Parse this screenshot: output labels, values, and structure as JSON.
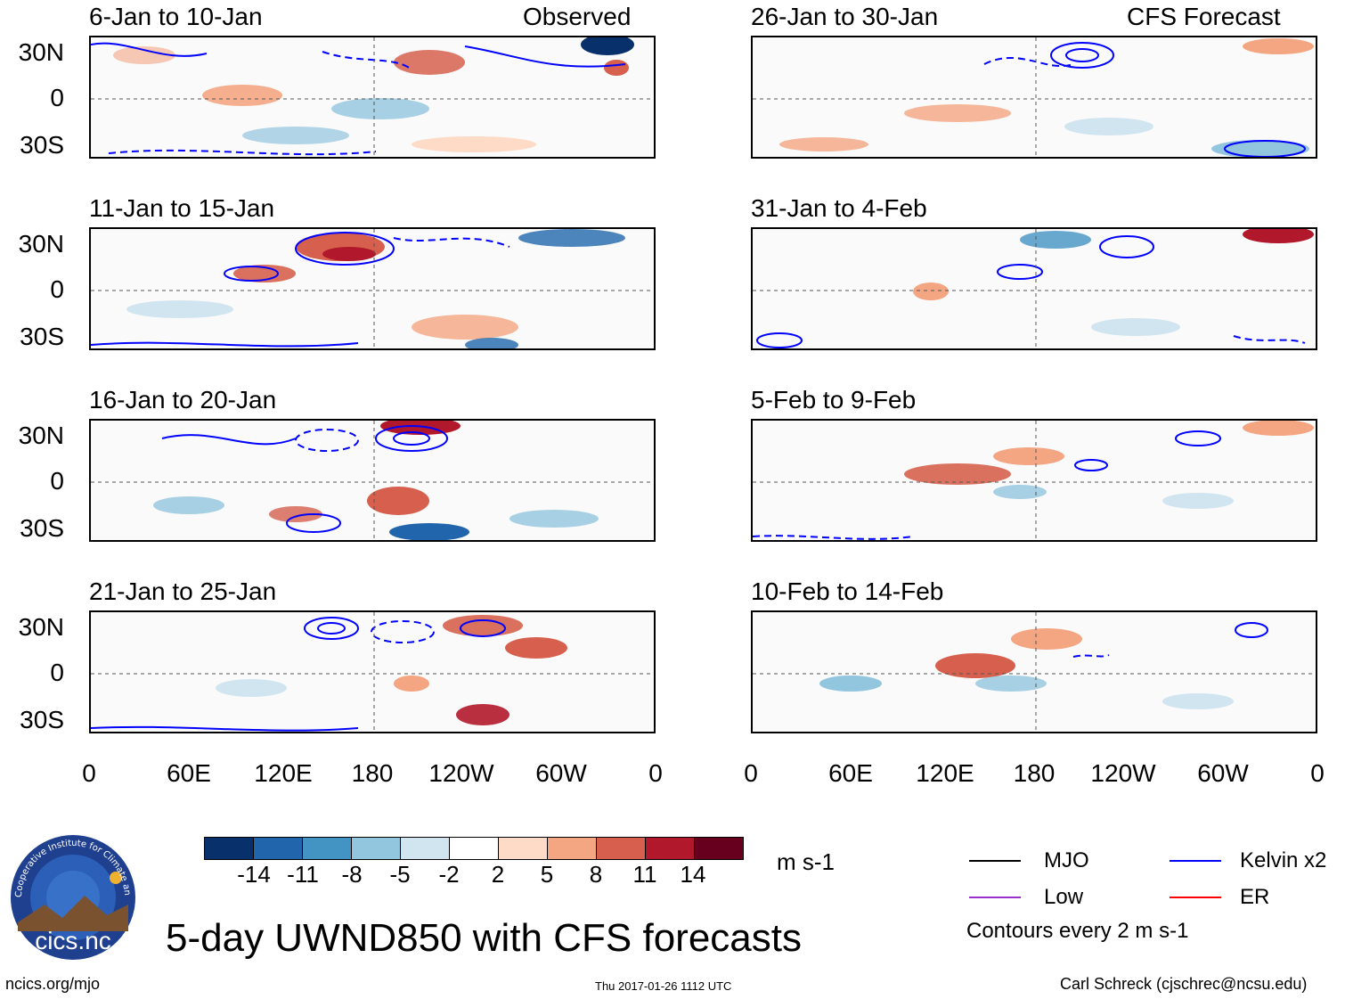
{
  "panels": [
    {
      "id": "p1",
      "title": "6-Jan to 10-Jan",
      "tag": "Observed"
    },
    {
      "id": "p2",
      "title": "11-Jan to 15-Jan",
      "tag": ""
    },
    {
      "id": "p3",
      "title": "16-Jan to 20-Jan",
      "tag": ""
    },
    {
      "id": "p4",
      "title": "21-Jan to 25-Jan",
      "tag": ""
    },
    {
      "id": "p5",
      "title": "26-Jan to 30-Jan",
      "tag": "CFS Forecast"
    },
    {
      "id": "p6",
      "title": "31-Jan to 4-Feb",
      "tag": ""
    },
    {
      "id": "p7",
      "title": "5-Feb to 9-Feb",
      "tag": ""
    },
    {
      "id": "p8",
      "title": "10-Feb to 14-Feb",
      "tag": ""
    }
  ],
  "lat_labels": [
    "30N",
    "0",
    "30S"
  ],
  "lon_labels": [
    "0",
    "60E",
    "120E",
    "180",
    "120W",
    "60W",
    "0"
  ],
  "colorbar": {
    "colors": [
      "#08306b",
      "#2166ac",
      "#4393c3",
      "#92c5de",
      "#d1e5f0",
      "#ffffff",
      "#fddbc7",
      "#f4a582",
      "#d6604d",
      "#b2182b",
      "#67001f"
    ],
    "labels": [
      "-14",
      "-11",
      "-8",
      "-5",
      "-2",
      "2",
      "5",
      "8",
      "11",
      "14"
    ],
    "units": "m s-1"
  },
  "legend": {
    "items": [
      {
        "label": "MJO",
        "color": "#000000"
      },
      {
        "label": "Kelvin x2",
        "color": "#0000ff"
      },
      {
        "label": "Low",
        "color": "#9932cc"
      },
      {
        "label": "ER",
        "color": "#ff0000"
      }
    ],
    "note": "Contours every 2 m s-1"
  },
  "logo": {
    "text": "cics.nc",
    "ring_text": "Cooperative Institute for Climate and Satellites"
  },
  "main_title": "5-day UWND850 with CFS forecasts",
  "footer": {
    "left": "ncics.org/mjo",
    "center": "Thu 2017-01-26 1112 UTC",
    "right": "Carl Schreck (cjschrec@ncsu.edu)"
  }
}
